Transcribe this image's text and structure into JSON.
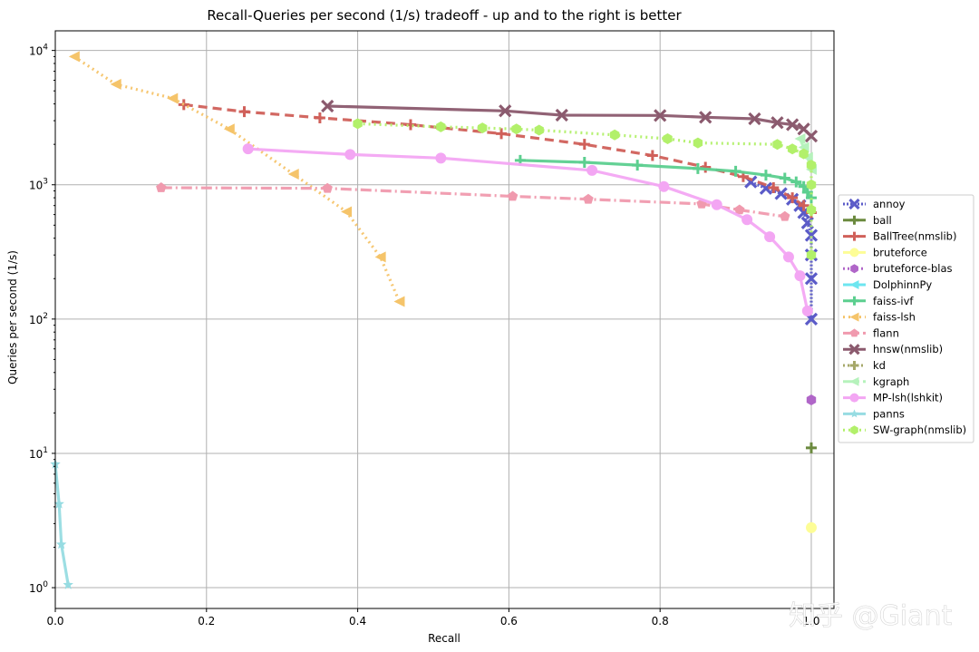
{
  "chart_data": {
    "type": "line",
    "title": "Recall-Queries per second (1/s) tradeoff - up and to the right is better",
    "xlabel": "Recall",
    "ylabel": "Queries per second (1/s)",
    "xlim": [
      0.0,
      1.03
    ],
    "ylim": [
      0.7,
      14000
    ],
    "yscale": "log",
    "grid": true,
    "legend_position": "right-outside",
    "x_ticks": [
      {
        "value": 0.0,
        "label": "0.0"
      },
      {
        "value": 0.2,
        "label": "0.2"
      },
      {
        "value": 0.4,
        "label": "0.4"
      },
      {
        "value": 0.6,
        "label": "0.6"
      },
      {
        "value": 0.8,
        "label": "0.8"
      },
      {
        "value": 1.0,
        "label": "1.0"
      }
    ],
    "y_ticks": [
      {
        "value": 1,
        "base": "10",
        "exp": "0"
      },
      {
        "value": 10,
        "base": "10",
        "exp": "1"
      },
      {
        "value": 100,
        "base": "10",
        "exp": "2"
      },
      {
        "value": 1000,
        "base": "10",
        "exp": "3"
      },
      {
        "value": 10000,
        "base": "10",
        "exp": "4"
      }
    ],
    "series": [
      {
        "name": "annoy",
        "color": "#5b5bc8",
        "dash": "2 2",
        "marker": "x",
        "x": [
          0.92,
          0.94,
          0.96,
          0.975,
          0.985,
          0.99,
          0.995,
          1.0,
          1.0,
          1.0,
          1.0
        ],
        "y": [
          1050,
          940,
          860,
          780,
          700,
          620,
          520,
          420,
          300,
          200,
          100
        ]
      },
      {
        "name": "ball",
        "color": "#6b8a3e",
        "dash": "",
        "marker": "plus",
        "x": [
          1.0
        ],
        "y": [
          11
        ]
      },
      {
        "name": "BallTree(nmslib)",
        "color": "#d0605a",
        "dash": "10 6",
        "marker": "plus",
        "x": [
          0.17,
          0.25,
          0.35,
          0.47,
          0.59,
          0.7,
          0.79,
          0.86,
          0.91,
          0.95,
          0.975,
          0.99,
          1.0
        ],
        "y": [
          3950,
          3500,
          3150,
          2800,
          2400,
          2000,
          1650,
          1350,
          1150,
          950,
          800,
          700,
          620
        ]
      },
      {
        "name": "bruteforce",
        "color": "#fdfd96",
        "dash": "",
        "marker": "circle",
        "x": [
          1.0
        ],
        "y": [
          2.8
        ]
      },
      {
        "name": "bruteforce-blas",
        "color": "#b066c8",
        "dash": "2 3",
        "marker": "hexagon",
        "x": [
          1.0
        ],
        "y": [
          25
        ]
      },
      {
        "name": "DolphinnPy",
        "color": "#6de6f0",
        "dash": "",
        "marker": "tri-left",
        "x": [],
        "y": []
      },
      {
        "name": "faiss-ivf",
        "color": "#5ccf8f",
        "dash": "",
        "marker": "plus",
        "x": [
          0.615,
          0.7,
          0.77,
          0.85,
          0.9,
          0.94,
          0.965,
          0.98,
          0.99,
          0.995,
          1.0
        ],
        "y": [
          1520,
          1470,
          1400,
          1320,
          1260,
          1180,
          1120,
          1050,
          970,
          880,
          800
        ]
      },
      {
        "name": "faiss-lsh",
        "color": "#f5c46a",
        "dash": "2 4",
        "marker": "tri-left",
        "x": [
          0.025,
          0.08,
          0.155,
          0.23,
          0.315,
          0.385,
          0.43,
          0.455
        ],
        "y": [
          9000,
          5600,
          4400,
          2600,
          1200,
          630,
          290,
          135
        ]
      },
      {
        "name": "flann",
        "color": "#f09aae",
        "dash": "12 4 2 4",
        "marker": "pentagon",
        "x": [
          0.14,
          0.36,
          0.605,
          0.705,
          0.855,
          0.905,
          0.965
        ],
        "y": [
          950,
          940,
          820,
          780,
          720,
          650,
          580
        ]
      },
      {
        "name": "hnsw(nmslib)",
        "color": "#8b5a6e",
        "dash": "",
        "marker": "x",
        "x": [
          0.36,
          0.595,
          0.67,
          0.8,
          0.86,
          0.925,
          0.955,
          0.975,
          0.99,
          1.0
        ],
        "y": [
          3850,
          3550,
          3300,
          3280,
          3180,
          3100,
          2900,
          2800,
          2600,
          2300
        ]
      },
      {
        "name": "kd",
        "color": "#a6a86a",
        "dash": "2 3",
        "marker": "plus",
        "x": [],
        "y": []
      },
      {
        "name": "kgraph",
        "color": "#b6f2bc",
        "dash": "12 4 2 4",
        "marker": "tri-left",
        "x": [
          0.985,
          0.99,
          0.995,
          1.0
        ],
        "y": [
          2200,
          1900,
          1600,
          1300
        ]
      },
      {
        "name": "MP-lsh(lshkit)",
        "color": "#f3a6f3",
        "dash": "",
        "marker": "circle",
        "x": [
          0.255,
          0.39,
          0.51,
          0.71,
          0.805,
          0.875,
          0.915,
          0.945,
          0.97,
          0.985,
          0.995
        ],
        "y": [
          1850,
          1680,
          1580,
          1280,
          970,
          710,
          550,
          410,
          290,
          210,
          115
        ]
      },
      {
        "name": "panns",
        "color": "#97dce2",
        "dash": "",
        "marker": "star",
        "x": [
          0.0,
          0.005,
          0.008,
          0.017
        ],
        "y": [
          8.3,
          4.2,
          2.1,
          1.05
        ]
      },
      {
        "name": "SW-graph(nmslib)",
        "color": "#b2f06a",
        "dash": "2 4",
        "marker": "hexagon",
        "x": [
          0.4,
          0.51,
          0.565,
          0.61,
          0.64,
          0.74,
          0.81,
          0.85,
          0.955,
          0.975,
          0.99,
          1.0,
          1.0,
          1.0,
          1.0
        ],
        "y": [
          2850,
          2700,
          2650,
          2600,
          2550,
          2350,
          2200,
          2050,
          2000,
          1850,
          1700,
          1400,
          1000,
          650,
          300
        ]
      }
    ]
  },
  "watermark": {
    "text": "知乎 @Giant"
  }
}
